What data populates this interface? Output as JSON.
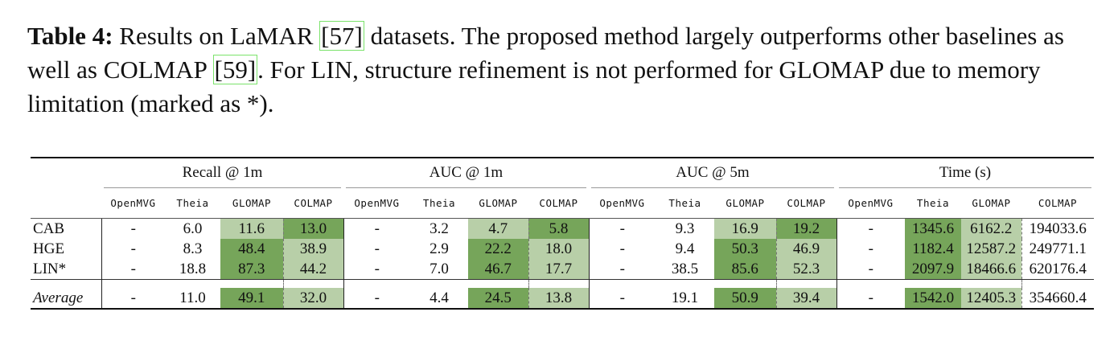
{
  "caption": {
    "label": "Table 4:",
    "text_before_ref1": " Results on LaMAR ",
    "ref1": "[57]",
    "text_mid": " datasets. The proposed method largely outperforms other baselines as well as COLMAP ",
    "ref2": "[59]",
    "text_after": ". For LIN, structure refinement is not performed for GLOMAP due to memory limitation (marked as *)."
  },
  "colors": {
    "best": "#76a55a",
    "second": "#b8cfa8"
  },
  "groups": [
    "Recall @ 1m",
    "AUC @ 1m",
    "AUC @ 5m",
    "Time (s)"
  ],
  "methods": [
    "OpenMVG",
    "Theia",
    "GLOMAP",
    "COLMAP"
  ],
  "rows": [
    {
      "label": "CAB",
      "values": [
        [
          "-",
          "6.0",
          "11.6",
          "13.0"
        ],
        [
          "-",
          "3.2",
          "4.7",
          "5.8"
        ],
        [
          "-",
          "9.3",
          "16.9",
          "19.2"
        ],
        [
          "-",
          "1345.6",
          "6162.2",
          "194033.6"
        ]
      ],
      "highlight": [
        [
          "",
          "",
          "second",
          "best"
        ],
        [
          "",
          "",
          "second",
          "best"
        ],
        [
          "",
          "",
          "second",
          "best"
        ],
        [
          "",
          "best",
          "second",
          ""
        ]
      ]
    },
    {
      "label": "HGE",
      "values": [
        [
          "-",
          "8.3",
          "48.4",
          "38.9"
        ],
        [
          "-",
          "2.9",
          "22.2",
          "18.0"
        ],
        [
          "-",
          "9.4",
          "50.3",
          "46.9"
        ],
        [
          "-",
          "1182.4",
          "12587.2",
          "249771.1"
        ]
      ],
      "highlight": [
        [
          "",
          "",
          "best",
          "second"
        ],
        [
          "",
          "",
          "best",
          "second"
        ],
        [
          "",
          "",
          "best",
          "second"
        ],
        [
          "",
          "best",
          "second",
          ""
        ]
      ]
    },
    {
      "label": "LIN*",
      "values": [
        [
          "-",
          "18.8",
          "87.3",
          "44.2"
        ],
        [
          "-",
          "7.0",
          "46.7",
          "17.7"
        ],
        [
          "-",
          "38.5",
          "85.6",
          "52.3"
        ],
        [
          "-",
          "2097.9",
          "18466.6",
          "620176.4"
        ]
      ],
      "highlight": [
        [
          "",
          "",
          "best",
          "second"
        ],
        [
          "",
          "",
          "best",
          "second"
        ],
        [
          "",
          "",
          "best",
          "second"
        ],
        [
          "",
          "best",
          "second",
          ""
        ]
      ]
    }
  ],
  "average": {
    "label": "Average",
    "values": [
      [
        "-",
        "11.0",
        "49.1",
        "32.0"
      ],
      [
        "-",
        "4.4",
        "24.5",
        "13.8"
      ],
      [
        "-",
        "19.1",
        "50.9",
        "39.4"
      ],
      [
        "-",
        "1542.0",
        "12405.3",
        "354660.4"
      ]
    ],
    "highlight": [
      [
        "",
        "",
        "best",
        "second"
      ],
      [
        "",
        "",
        "best",
        "second"
      ],
      [
        "",
        "",
        "best",
        "second"
      ],
      [
        "",
        "best",
        "second",
        ""
      ]
    ]
  }
}
